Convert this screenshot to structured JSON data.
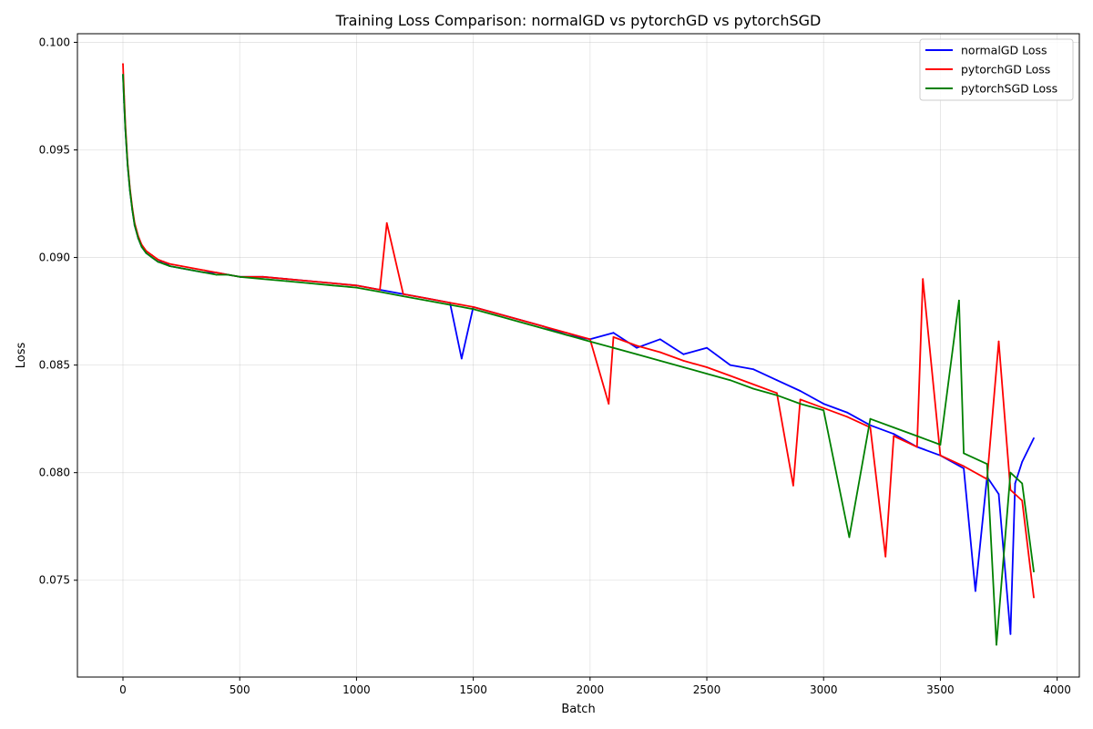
{
  "chart_data": {
    "type": "line",
    "title": "Training Loss Comparison: normalGD vs pytorchGD vs pytorchSGD",
    "xlabel": "Batch",
    "ylabel": "Loss",
    "xlim": [
      -195,
      4095
    ],
    "ylim": [
      0.0705,
      0.1004
    ],
    "xticks": [
      0,
      500,
      1000,
      1500,
      2000,
      2500,
      3000,
      3500,
      4000
    ],
    "xtick_labels": [
      "0",
      "500",
      "1000",
      "1500",
      "2000",
      "2500",
      "3000",
      "3500",
      "4000"
    ],
    "yticks": [
      0.075,
      0.08,
      0.085,
      0.09,
      0.095,
      0.1
    ],
    "ytick_labels": [
      "0.075",
      "0.080",
      "0.085",
      "0.090",
      "0.095",
      "0.100"
    ],
    "grid": true,
    "legend_position": "top-right",
    "series": [
      {
        "name": "normalGD Loss",
        "color": "#0000ff",
        "x": [
          0,
          5,
          10,
          20,
          30,
          40,
          50,
          65,
          80,
          100,
          125,
          150,
          175,
          200,
          250,
          300,
          350,
          400,
          450,
          500,
          600,
          700,
          800,
          900,
          1000,
          1100,
          1200,
          1300,
          1400,
          1450,
          1500,
          1600,
          1700,
          1800,
          1900,
          2000,
          2100,
          2200,
          2300,
          2400,
          2500,
          2600,
          2700,
          2800,
          2900,
          3000,
          3100,
          3200,
          3300,
          3400,
          3500,
          3600,
          3650,
          3700,
          3750,
          3800,
          3820,
          3850,
          3900
        ],
        "values": [
          0.0985,
          0.0972,
          0.096,
          0.0943,
          0.0931,
          0.0922,
          0.0915,
          0.0909,
          0.0905,
          0.0902,
          0.09,
          0.0898,
          0.0898,
          0.0896,
          0.0895,
          0.0894,
          0.0893,
          0.0893,
          0.0892,
          0.0891,
          0.0891,
          0.089,
          0.0889,
          0.0888,
          0.0887,
          0.0885,
          0.0883,
          0.0881,
          0.0879,
          0.0853,
          0.0877,
          0.0874,
          0.0871,
          0.0868,
          0.0864,
          0.0862,
          0.0865,
          0.0858,
          0.0862,
          0.0855,
          0.0858,
          0.085,
          0.0848,
          0.0843,
          0.0838,
          0.0832,
          0.0828,
          0.0822,
          0.0818,
          0.0812,
          0.0808,
          0.0802,
          0.0745,
          0.0798,
          0.079,
          0.0725,
          0.0795,
          0.0805,
          0.0816
        ]
      },
      {
        "name": "pytorchGD Loss",
        "color": "#ff0000",
        "x": [
          0,
          5,
          10,
          20,
          30,
          40,
          50,
          65,
          80,
          100,
          125,
          150,
          175,
          200,
          250,
          300,
          350,
          400,
          450,
          500,
          600,
          700,
          800,
          900,
          1000,
          1100,
          1130,
          1200,
          1300,
          1400,
          1500,
          1600,
          1700,
          1800,
          1900,
          2000,
          2080,
          2100,
          2200,
          2300,
          2400,
          2500,
          2600,
          2700,
          2800,
          2870,
          2900,
          3000,
          3100,
          3200,
          3265,
          3300,
          3400,
          3425,
          3500,
          3600,
          3700,
          3750,
          3800,
          3850,
          3900
        ],
        "values": [
          0.099,
          0.0975,
          0.0962,
          0.0944,
          0.0932,
          0.0923,
          0.0916,
          0.091,
          0.0906,
          0.0903,
          0.0901,
          0.0899,
          0.0898,
          0.0897,
          0.0896,
          0.0895,
          0.0894,
          0.0893,
          0.0892,
          0.0891,
          0.0891,
          0.089,
          0.0889,
          0.0888,
          0.0887,
          0.0885,
          0.0916,
          0.0883,
          0.0881,
          0.0879,
          0.0877,
          0.0874,
          0.0871,
          0.0868,
          0.0865,
          0.0862,
          0.0832,
          0.0863,
          0.0859,
          0.0856,
          0.0852,
          0.0849,
          0.0845,
          0.0841,
          0.0837,
          0.0794,
          0.0834,
          0.083,
          0.0826,
          0.0821,
          0.0761,
          0.0817,
          0.0812,
          0.089,
          0.0808,
          0.0803,
          0.0797,
          0.0861,
          0.0792,
          0.0787,
          0.0742
        ]
      },
      {
        "name": "pytorchSGD Loss",
        "color": "#008000",
        "x": [
          0,
          5,
          10,
          20,
          30,
          40,
          50,
          65,
          80,
          100,
          125,
          150,
          175,
          200,
          250,
          300,
          350,
          400,
          450,
          500,
          600,
          700,
          800,
          900,
          1000,
          1100,
          1200,
          1300,
          1400,
          1500,
          1600,
          1700,
          1800,
          1900,
          2000,
          2100,
          2200,
          2300,
          2400,
          2500,
          2600,
          2700,
          2800,
          2900,
          3000,
          3110,
          3200,
          3300,
          3400,
          3500,
          3580,
          3600,
          3700,
          3740,
          3800,
          3850,
          3900
        ],
        "values": [
          0.0985,
          0.0972,
          0.096,
          0.0943,
          0.0931,
          0.0922,
          0.0915,
          0.0909,
          0.0905,
          0.0902,
          0.09,
          0.0898,
          0.0897,
          0.0896,
          0.0895,
          0.0894,
          0.0893,
          0.0892,
          0.0892,
          0.0891,
          0.089,
          0.0889,
          0.0888,
          0.0887,
          0.0886,
          0.0884,
          0.0882,
          0.088,
          0.0878,
          0.0876,
          0.0873,
          0.087,
          0.0867,
          0.0864,
          0.0861,
          0.0858,
          0.0855,
          0.0852,
          0.0849,
          0.0846,
          0.0843,
          0.0839,
          0.0836,
          0.0832,
          0.0829,
          0.077,
          0.0825,
          0.0821,
          0.0817,
          0.0813,
          0.088,
          0.0809,
          0.0804,
          0.072,
          0.08,
          0.0795,
          0.0754
        ]
      }
    ]
  }
}
